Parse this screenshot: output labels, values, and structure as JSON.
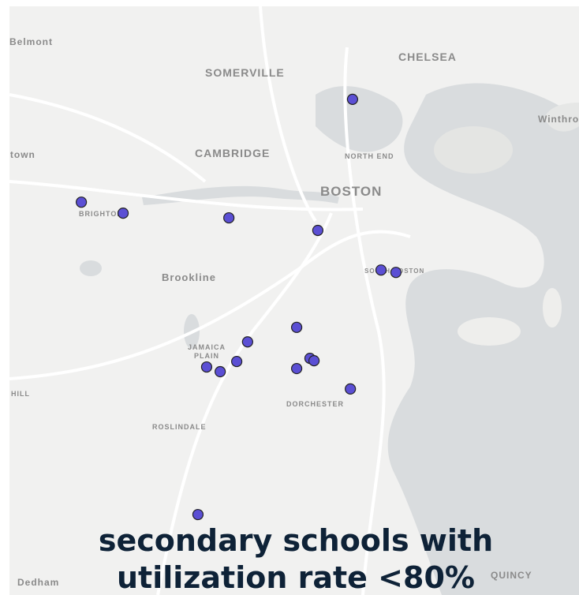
{
  "map": {
    "title_lines": [
      "secondary schools with",
      "utilization rate <80%"
    ],
    "bounds": {
      "lon": [
        -71.19,
        -70.98
      ],
      "lat": [
        42.25,
        42.4
      ]
    },
    "marker_color": "#5b4fd4",
    "places": [
      "Belmont",
      "SOMERVILLE",
      "CHELSEA",
      "Winthrop",
      "Watertown",
      "CAMBRIDGE",
      "NORTH END",
      "BOSTON",
      "BRIGHTON",
      "SOUTH BOSTON",
      "Brookline",
      "JAMAICA",
      "PLAIN",
      "HILL",
      "DORCHESTER",
      "ROSLINDALE",
      "Dedham",
      "QUINCY"
    ],
    "points": {
      "lon": [
        -71.0635,
        -71.1635,
        -71.1481,
        -71.1091,
        -71.0763,
        -71.053,
        -71.0475,
        -71.0841,
        -71.1022,
        -71.0792,
        -71.0777,
        -71.1062,
        -71.1173,
        -71.1123,
        -71.0841,
        -71.0643,
        -71.1205
      ],
      "lat": [
        42.3763,
        42.3501,
        42.3473,
        42.3461,
        42.3429,
        42.3328,
        42.3322,
        42.3182,
        42.3145,
        42.3103,
        42.3097,
        42.3095,
        42.3081,
        42.3069,
        42.3077,
        42.3025,
        42.2705
      ]
    }
  }
}
